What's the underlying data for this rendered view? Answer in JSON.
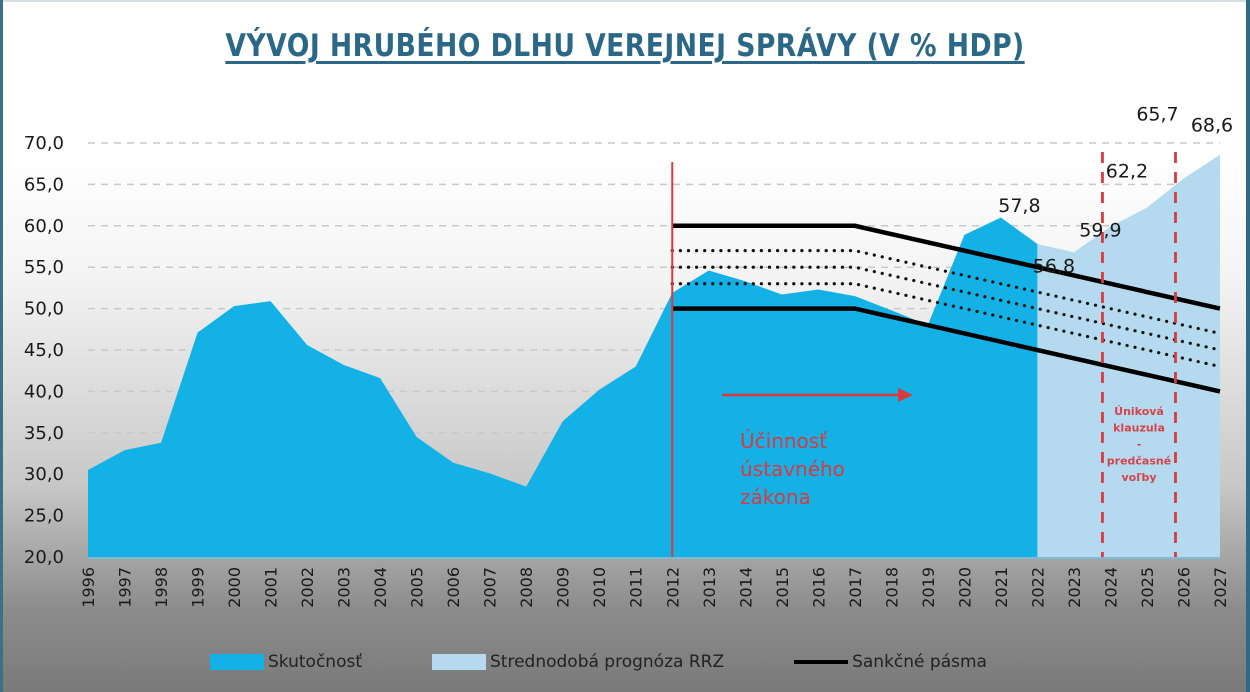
{
  "title": "VÝVOJ HRUBÉHO DLHU VEREJNEJ SPRÁVY (V % HDP)",
  "colors": {
    "actual": "#14b1e7",
    "forecast": "#b5d9ee",
    "band": "#000000",
    "red": "#d93a3f",
    "title": "#2b6786"
  },
  "legend": {
    "actual": "Skutočnosť",
    "forecast": "Strednodobá prognóza RRZ",
    "band": "Sankčné pásma"
  },
  "annotations": {
    "constitutional_law": [
      "Účinnosť",
      "ústavného",
      "zákona"
    ],
    "escape_clause": [
      "Úniková",
      "klauzula",
      "-",
      "predčasné",
      "voľby"
    ]
  },
  "chart_data": {
    "type": "area",
    "title": "VÝVOJ HRUBÉHO DLHU VEREJNEJ SPRÁVY (V % HDP)",
    "xlabel": "",
    "ylabel": "",
    "ylim": [
      20,
      70
    ],
    "yticks": [
      "20,0",
      "25,0",
      "30,0",
      "35,0",
      "40,0",
      "45,0",
      "50,0",
      "55,0",
      "60,0",
      "65,0",
      "70,0"
    ],
    "grid": true,
    "legend_position": "bottom",
    "categories": [
      "1996",
      "1997",
      "1998",
      "1999",
      "2000",
      "2001",
      "2002",
      "2003",
      "2004",
      "2005",
      "2006",
      "2007",
      "2008",
      "2009",
      "2010",
      "2011",
      "2012",
      "2013",
      "2014",
      "2015",
      "2016",
      "2017",
      "2018",
      "2019",
      "2020",
      "2021",
      "2022",
      "2023",
      "2024",
      "2025",
      "2026",
      "2027"
    ],
    "series": [
      {
        "name": "Skutočnosť",
        "type": "area",
        "years": [
          "1996",
          "1997",
          "1998",
          "1999",
          "2000",
          "2001",
          "2002",
          "2003",
          "2004",
          "2005",
          "2006",
          "2007",
          "2008",
          "2009",
          "2010",
          "2011",
          "2012",
          "2013",
          "2014",
          "2015",
          "2016",
          "2017",
          "2018",
          "2019",
          "2020",
          "2021",
          "2022"
        ],
        "values": [
          30.5,
          32.9,
          33.8,
          47.1,
          50.3,
          50.9,
          45.6,
          43.2,
          41.6,
          34.5,
          31.4,
          30.1,
          28.5,
          36.4,
          40.2,
          43.0,
          51.9,
          54.6,
          53.3,
          51.7,
          52.3,
          51.5,
          49.8,
          48.0,
          58.9,
          61.0,
          57.8
        ]
      },
      {
        "name": "Strednodobá prognóza RRZ",
        "type": "area",
        "years": [
          "2022",
          "2023",
          "2024",
          "2025",
          "2026",
          "2027"
        ],
        "values": [
          57.8,
          56.8,
          59.9,
          62.2,
          65.7,
          68.6
        ]
      },
      {
        "name": "Sankčné pásma (horná hranica)",
        "type": "line",
        "years": [
          "2012",
          "2017",
          "2027"
        ],
        "values": [
          60,
          60,
          50
        ]
      },
      {
        "name": "Sankčné pásma (1)",
        "type": "dotted",
        "years": [
          "2012",
          "2017",
          "2027"
        ],
        "values": [
          57,
          57,
          47
        ]
      },
      {
        "name": "Sankčné pásma (2)",
        "type": "dotted",
        "years": [
          "2012",
          "2017",
          "2027"
        ],
        "values": [
          55,
          55,
          45
        ]
      },
      {
        "name": "Sankčné pásma (3)",
        "type": "dotted",
        "years": [
          "2012",
          "2017",
          "2027"
        ],
        "values": [
          53,
          53,
          43
        ]
      },
      {
        "name": "Sankčné pásma (dolná hranica)",
        "type": "line",
        "years": [
          "2012",
          "2017",
          "2027"
        ],
        "values": [
          50,
          50,
          40
        ]
      }
    ],
    "data_labels": [
      {
        "year": "2022",
        "text": "57,8"
      },
      {
        "year": "2023",
        "text": "56,8"
      },
      {
        "year": "2024",
        "text": "59,9"
      },
      {
        "year": "2025",
        "text": "62,2"
      },
      {
        "year": "2026",
        "text": "65,7"
      },
      {
        "year": "2027",
        "text": "68,6"
      }
    ],
    "vertical_markers": [
      {
        "year": "2012",
        "style": "solid",
        "color": "#d93a3f",
        "label": "Účinnosť ústavného zákona"
      },
      {
        "year": "2024",
        "style": "dashed",
        "color": "#d93a3f",
        "label": "Úniková klauzula - predčasné voľby"
      },
      {
        "year": "2026",
        "style": "dashed",
        "color": "#d93a3f"
      }
    ]
  }
}
